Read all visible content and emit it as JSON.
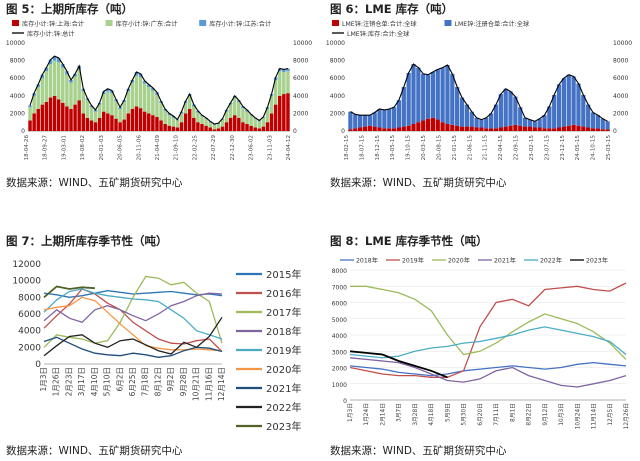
{
  "source_text": "数据来源：WIND、五矿期货研究中心",
  "fig5": {
    "title": "图 5：上期所库存（吨）",
    "legend": [
      "库存小计:锌:上海:合计",
      "库存小计:锌:广东:合计",
      "库存小计:锌:江苏:合计",
      "库存小计:锌:总计"
    ],
    "colors": {
      "shanghai": "#c00000",
      "guangdong": "#a9d18e",
      "jiangsu": "#5b9bd5",
      "total": "#000000"
    },
    "yleft_ticks": [
      "0",
      "2000",
      "4000",
      "6000",
      "8000",
      "10000"
    ],
    "yright_ticks": [
      "0",
      "2000",
      "4000",
      "6000",
      "8000",
      "10000"
    ],
    "xticks": [
      "18-04-26",
      "18-09-27",
      "19-03-01",
      "19-08-02",
      "20-01-03",
      "20-06-05",
      "20-11-06",
      "21-04-09",
      "21-09-10",
      "22-02-25",
      "22-07-29",
      "22-12-30",
      "23-06-02",
      "23-11-03",
      "24-04-12"
    ]
  },
  "fig6": {
    "title": "图 6：LME 库存（吨）",
    "legend": [
      "LME锌:注销仓单:合计:全球",
      "LME锌:注册仓单:合计:全球",
      "LME锌:库存:合计:全球"
    ],
    "colors": {
      "cancelled": "#c00000",
      "registered": "#4472c4",
      "total": "#000000"
    },
    "yleft_ticks": [
      "0",
      "2000",
      "4000",
      "6000",
      "8000",
      "10000"
    ],
    "yright_ticks": [
      "0",
      "2000",
      "4000",
      "6000",
      "8000",
      "10000"
    ],
    "xticks": [
      "18-02-15",
      "18-07-15",
      "18-12-15",
      "19-05-15",
      "19-10-15",
      "20-03-15",
      "20-08-15",
      "21-01-15",
      "21-06-15",
      "21-11-15",
      "22-04-15",
      "22-09-15",
      "23-02-15",
      "23-07-15",
      "23-12-15",
      "24-05-15",
      "24-10-15",
      "25-03-15"
    ]
  },
  "fig7": {
    "title": "图 7：上期所库存季节性（吨）",
    "yticks": [
      "0",
      "2000",
      "4000",
      "6000",
      "8000",
      "10000",
      "12000"
    ],
    "xticks": [
      "1月3日",
      "1月26日",
      "2月23日",
      "3月17日",
      "4月10日",
      "5月10日",
      "6月2日",
      "6月25日",
      "7月18日",
      "8月12日",
      "9月2日",
      "9月28日",
      "10月21日",
      "11月16日",
      "12月14日"
    ]
  },
  "fig8": {
    "title": "图 8：LME 库存季节性（吨）",
    "yticks": [
      "0",
      "1000",
      "2000",
      "3000",
      "4000",
      "5000",
      "6000",
      "7000",
      "8000"
    ],
    "xticks": [
      "1月3日",
      "1月24日",
      "2月14日",
      "3月7日",
      "3月28日",
      "4月18日",
      "5月9日",
      "5月30日",
      "6月20日",
      "7月11日",
      "8月1日",
      "8月22日",
      "9月12日",
      "10月3日",
      "10月24日",
      "11月14日",
      "12月5日",
      "12月26日"
    ]
  },
  "chart_data": [
    {
      "type": "bar",
      "title": "图 5：上期所库存（吨）",
      "x_range": [
        "18-04-26",
        "24-04-12"
      ],
      "ylim": [
        0,
        10000
      ],
      "series": [
        {
          "name": "库存小计:锌:上海:合计",
          "values": [
            1200,
            2000,
            2500,
            3000,
            3300,
            3800,
            4000,
            3600,
            3200,
            2800,
            2500,
            3000,
            3500,
            2000,
            1500,
            1200,
            1000,
            1500,
            2200,
            2000,
            1800,
            1400,
            1000,
            1300,
            2000,
            2500,
            2800,
            2600,
            2200,
            2000,
            1800,
            1600,
            1200,
            800,
            600,
            500,
            400,
            1000,
            2000,
            2500,
            1500,
            1000,
            800,
            600,
            400,
            200,
            300,
            500,
            1000,
            1500,
            1800,
            1500,
            1000,
            800,
            600,
            400,
            300,
            500,
            1000,
            2000,
            3000,
            4000,
            4200,
            4300
          ]
        },
        {
          "name": "库存小计:锌:广东:合计",
          "values": [
            1500,
            2000,
            2500,
            3000,
            3500,
            3800,
            4000,
            4200,
            4000,
            3600,
            3000,
            3200,
            3500,
            2500,
            2000,
            1500,
            1200,
            1500,
            2000,
            2500,
            2500,
            2000,
            1500,
            2000,
            2500,
            3000,
            3500,
            3500,
            3200,
            3000,
            2800,
            2500,
            2000,
            1500,
            1200,
            1000,
            800,
            1000,
            1200,
            1500,
            1300,
            1100,
            900,
            800,
            600,
            500,
            500,
            800,
            1200,
            1500,
            2000,
            1800,
            1600,
            1400,
            1200,
            1000,
            800,
            1000,
            1500,
            2000,
            2800,
            2800,
            2500,
            2500
          ]
        },
        {
          "name": "库存小计:锌:江苏:合计",
          "values": [
            200,
            300,
            300,
            400,
            400,
            500,
            500,
            500,
            400,
            400,
            300,
            300,
            400,
            300,
            200,
            200,
            200,
            200,
            300,
            300,
            300,
            200,
            200,
            200,
            300,
            300,
            400,
            400,
            300,
            300,
            300,
            300,
            200,
            200,
            200,
            200,
            100,
            200,
            200,
            200,
            200,
            200,
            100,
            100,
            100,
            100,
            100,
            100,
            200,
            200,
            200,
            200,
            200,
            200,
            100,
            100,
            100,
            100,
            200,
            200,
            300,
            300,
            300,
            300
          ]
        },
        {
          "name": "库存小计:锌:总计",
          "values": [
            2900,
            4300,
            5300,
            6400,
            7200,
            8100,
            8500,
            8300,
            7600,
            6800,
            5800,
            6500,
            7400,
            4800,
            3700,
            2900,
            2400,
            3200,
            4500,
            4800,
            4600,
            3600,
            2700,
            3500,
            4800,
            5800,
            6700,
            6500,
            5700,
            5300,
            4900,
            4400,
            3400,
            2500,
            2000,
            1700,
            1300,
            2200,
            3400,
            4200,
            3000,
            2300,
            1800,
            1500,
            1100,
            800,
            900,
            1400,
            2400,
            3200,
            4000,
            3500,
            2800,
            2400,
            1900,
            1500,
            1200,
            1600,
            2700,
            4200,
            6100,
            7100,
            7000,
            7100
          ]
        }
      ]
    },
    {
      "type": "bar",
      "title": "图 6：LME 库存（吨）",
      "x_range": [
        "18-02-15",
        "25-03-15"
      ],
      "ylim": [
        0,
        10000
      ],
      "series": [
        {
          "name": "LME锌:注销仓单:合计:全球",
          "values": [
            200,
            300,
            400,
            500,
            600,
            500,
            400,
            300,
            300,
            300,
            400,
            500,
            600,
            800,
            1000,
            1200,
            1400,
            1500,
            1300,
            1000,
            800,
            700,
            600,
            500,
            500,
            500,
            400,
            400,
            300,
            300,
            300,
            400,
            500,
            600,
            700,
            600,
            500,
            500,
            400,
            400,
            300,
            300,
            300,
            400,
            500,
            600,
            700,
            600,
            500,
            400,
            300,
            300,
            200,
            200
          ]
        },
        {
          "name": "LME锌:注册仓单:合计:全球",
          "values": [
            2000,
            1600,
            1400,
            1300,
            1200,
            1600,
            2100,
            2100,
            2200,
            2400,
            3100,
            4500,
            6000,
            6800,
            6200,
            5300,
            5000,
            5200,
            5700,
            6200,
            6700,
            5800,
            4400,
            3300,
            2500,
            1700,
            1100,
            900,
            1200,
            1700,
            2700,
            3800,
            4300,
            3900,
            3200,
            2100,
            1000,
            800,
            700,
            1000,
            1500,
            2500,
            3800,
            4900,
            5500,
            5800,
            5500,
            4800,
            3600,
            2600,
            1800,
            1500,
            1200,
            900
          ]
        },
        {
          "name": "LME锌:库存:合计:全球",
          "values": [
            2200,
            1900,
            1800,
            1800,
            1800,
            2100,
            2500,
            2400,
            2500,
            2700,
            3500,
            5000,
            6600,
            7600,
            7200,
            6500,
            6400,
            6700,
            7000,
            7200,
            7500,
            6500,
            5000,
            3800,
            3000,
            2200,
            1500,
            1300,
            1500,
            2000,
            3000,
            4200,
            4800,
            4500,
            3900,
            2700,
            1500,
            1300,
            1100,
            1400,
            1800,
            2800,
            4100,
            5300,
            6000,
            6400,
            6200,
            5400,
            4100,
            3000,
            2100,
            1800,
            1400,
            1100
          ]
        }
      ]
    },
    {
      "type": "line",
      "title": "图 7：上期所库存季节性（吨）",
      "ylim": [
        0,
        12000
      ],
      "series": [
        {
          "name": "2015年",
          "values": [
            8500,
            8300,
            8000,
            8200,
            8500,
            8800,
            8600,
            8400,
            8500,
            8600,
            8700,
            8500,
            8300,
            8400,
            8200
          ]
        },
        {
          "name": "2016年",
          "values": [
            4300,
            5800,
            7200,
            9000,
            8400,
            7300,
            6500,
            5000,
            4000,
            3000,
            2500,
            2400,
            2800,
            3000,
            1500
          ]
        },
        {
          "name": "2017年",
          "values": [
            2000,
            3500,
            3200,
            3000,
            2500,
            2800,
            5000,
            8000,
            10500,
            10300,
            9500,
            9800,
            8500,
            7500,
            2500
          ]
        },
        {
          "name": "2018年",
          "values": [
            5200,
            6500,
            5500,
            5000,
            6500,
            7000,
            6500,
            5800,
            5200,
            6000,
            7000,
            7500,
            8200,
            8500,
            8400
          ]
        },
        {
          "name": "2019年",
          "values": [
            6200,
            7700,
            8700,
            9000,
            8500,
            8200,
            8000,
            7800,
            7700,
            7500,
            6500,
            5500,
            4000,
            3500,
            3000
          ]
        },
        {
          "name": "2020年",
          "values": [
            6500,
            6800,
            7000,
            8000,
            7600,
            6200,
            4800,
            3500,
            2200,
            1900,
            1700,
            1700,
            1800,
            1700,
            1600
          ]
        },
        {
          "name": "2021年",
          "values": [
            2700,
            3200,
            2500,
            1800,
            1300,
            1100,
            1000,
            1300,
            1100,
            800,
            1000,
            1600,
            2000,
            1900,
            1500
          ]
        },
        {
          "name": "2022年",
          "values": [
            1000,
            2200,
            3300,
            3500,
            2500,
            2000,
            2800,
            3000,
            2300,
            1600,
            1200,
            2600,
            2000,
            3300,
            5600
          ]
        },
        {
          "name": "2023年",
          "values": [
            8000,
            9300,
            9000,
            9200,
            9100
          ]
        }
      ]
    },
    {
      "type": "line",
      "title": "图 8：LME 库存季节性（吨）",
      "ylim": [
        0,
        8000
      ],
      "series": [
        {
          "name": "2018年",
          "values": [
            2100,
            2000,
            1900,
            1700,
            1600,
            1500,
            1600,
            1800,
            1900,
            2000,
            2100,
            2000,
            1900,
            2000,
            2200,
            2300,
            2200,
            2100
          ]
        },
        {
          "name": "2019年",
          "values": [
            2000,
            1800,
            1600,
            1500,
            1500,
            1400,
            1400,
            1800,
            4500,
            6000,
            6200,
            5800,
            6800,
            6900,
            7000,
            6800,
            6700,
            7200
          ]
        },
        {
          "name": "2020年",
          "values": [
            7000,
            7000,
            6800,
            6600,
            6200,
            5500,
            4000,
            2800,
            3000,
            3500,
            4200,
            4800,
            5300,
            5000,
            4700,
            4200,
            3500,
            2500
          ]
        },
        {
          "name": "2021年",
          "values": [
            2600,
            2500,
            2400,
            2300,
            2000,
            1600,
            1200,
            1100,
            1300,
            1800,
            2000,
            1500,
            1200,
            900,
            800,
            1000,
            1200,
            1500
          ]
        },
        {
          "name": "2022年",
          "values": [
            2800,
            2700,
            2600,
            2700,
            3000,
            3200,
            3300,
            3500,
            3600,
            3800,
            4000,
            4300,
            4500,
            4300,
            4100,
            3900,
            3600,
            2800
          ]
        },
        {
          "name": "2023年",
          "values": [
            3000,
            2900,
            2800,
            2400,
            2100,
            1800,
            1400
          ]
        }
      ]
    }
  ]
}
